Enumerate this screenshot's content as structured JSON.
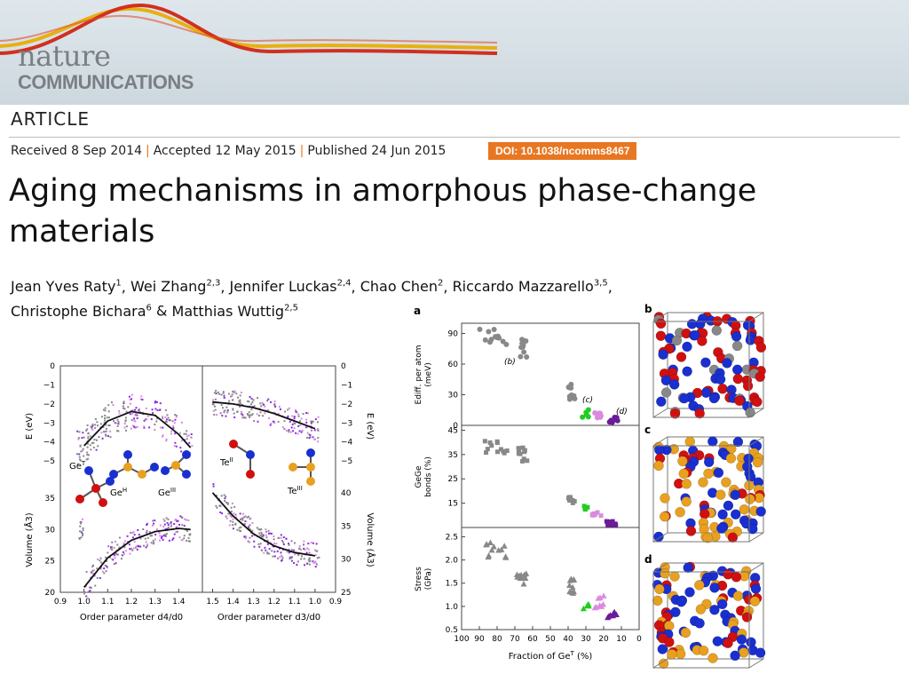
{
  "journal": {
    "name_line1": "nature",
    "name_line2": "COMMUNICATIONS"
  },
  "article_type": "ARTICLE",
  "dates": {
    "received": "Received 8 Sep 2014",
    "accepted": "Accepted 12 May 2015",
    "published": "Published 24 Jun 2015",
    "separator": "|"
  },
  "doi": "DOI: 10.1038/ncomms8467",
  "title": "Aging mechanisms in amorphous phase-change materials",
  "authors": [
    {
      "name": "Jean Yves Raty",
      "aff": "1",
      "sep": ", "
    },
    {
      "name": "Wei Zhang",
      "aff": "2,3",
      "sep": ", "
    },
    {
      "name": "Jennifer Luckas",
      "aff": "2,4",
      "sep": ", "
    },
    {
      "name": "Chao Chen",
      "aff": "2",
      "sep": ", "
    },
    {
      "name": "Riccardo Mazzarello",
      "aff": "3,5",
      "sep": ","
    },
    {
      "name": "Christophe Bichara",
      "aff": "6",
      "sep": " & "
    },
    {
      "name": "Matthias Wuttig",
      "aff": "2,5",
      "sep": ""
    }
  ],
  "colors": {
    "gray": "#888888",
    "purple": "#8a2be2",
    "pink": "#d98ae0",
    "green": "#22cc22",
    "darkpurple": "#6a1b9a",
    "blue": "#1a2fd0",
    "red": "#d01010",
    "gold": "#e8a020",
    "orange": "#e87722"
  },
  "chart_data": [
    {
      "type": "scatter",
      "panel": "left",
      "left_x": {
        "label": "Order parameter d4/d0",
        "ticks": [
          "0.9",
          "1.0",
          "1.1",
          "1.2",
          "1.3",
          "1.4"
        ]
      },
      "right_x": {
        "label": "Order parameter d3/d0",
        "ticks": [
          "1.5",
          "1.4",
          "1.3",
          "1.2",
          "1.1",
          "1.0",
          "0.9"
        ]
      },
      "energy_axis": {
        "label": "E (eV)",
        "ticks": [
          "0",
          "−1",
          "−2",
          "−3",
          "−4",
          "−5"
        ],
        "ylim": [
          -5.6,
          0
        ]
      },
      "volume_left_axis": {
        "label": "Volume (Å3)",
        "ticks": [
          "20",
          "25",
          "30",
          "35"
        ],
        "ylim": [
          20,
          38
        ]
      },
      "volume_right_axis": {
        "label": "Volume (Å3)",
        "ticks": [
          "25",
          "30",
          "35",
          "40"
        ],
        "ylim": [
          25,
          42
        ]
      },
      "labels": {
        "GeT": "Ge",
        "GeH": "Ge",
        "GeIII": "Ge",
        "TeII": "Te",
        "TeIII": "Te",
        "supT": "T",
        "supH": "H",
        "supIII": "III",
        "supII": "II"
      },
      "energy_fit_left": {
        "x": [
          1.0,
          1.1,
          1.2,
          1.3,
          1.4,
          1.45
        ],
        "y": [
          -4.2,
          -2.9,
          -2.4,
          -2.6,
          -3.6,
          -4.3
        ]
      },
      "energy_fit_right": {
        "x": [
          1.5,
          1.4,
          1.3,
          1.2,
          1.1,
          1.0
        ],
        "y": [
          -1.9,
          -2.0,
          -2.2,
          -2.5,
          -2.9,
          -3.3
        ]
      },
      "volume_fit_left": {
        "x": [
          1.0,
          1.1,
          1.2,
          1.3,
          1.4,
          1.45
        ],
        "y": [
          20.8,
          25.5,
          28.3,
          29.7,
          30.2,
          30.0
        ]
      },
      "volume_fit_right": {
        "x": [
          1.5,
          1.4,
          1.3,
          1.2,
          1.1,
          1.0
        ],
        "y": [
          40.0,
          36.5,
          33.8,
          32.0,
          31.0,
          30.5
        ]
      }
    },
    {
      "type": "scatter",
      "panel": "a",
      "xlabel": "Fraction of Ge",
      "xlabel_sup": "T",
      "xlabel_unit": " (%)",
      "x_ticks": [
        "100",
        "90",
        "80",
        "70",
        "60",
        "50",
        "40",
        "30",
        "20",
        "10",
        "0"
      ],
      "xlim": [
        100,
        0
      ],
      "subplots": [
        {
          "ylabel1": "Ediff. per atom",
          "ylabel2": "(meV)",
          "ylim": [
            0,
            100
          ],
          "ticks": [
            "0",
            "30",
            "60",
            "90"
          ],
          "annotations": [
            "(b)",
            "(c)",
            "(d)"
          ]
        },
        {
          "ylabel1": "GeGe",
          "ylabel2": "bonds (%)",
          "ylim": [
            5,
            47
          ],
          "ticks": [
            "15",
            "25",
            "35",
            "45"
          ]
        },
        {
          "ylabel1": "Stress",
          "ylabel2": "(GPa)",
          "ylim": [
            0.5,
            2.7
          ],
          "ticks": [
            "0.5",
            "1.0",
            "1.5",
            "2.0",
            "2.5"
          ]
        }
      ]
    }
  ],
  "panel_letters": {
    "a": "a",
    "b": "b",
    "c": "c",
    "d": "d"
  }
}
